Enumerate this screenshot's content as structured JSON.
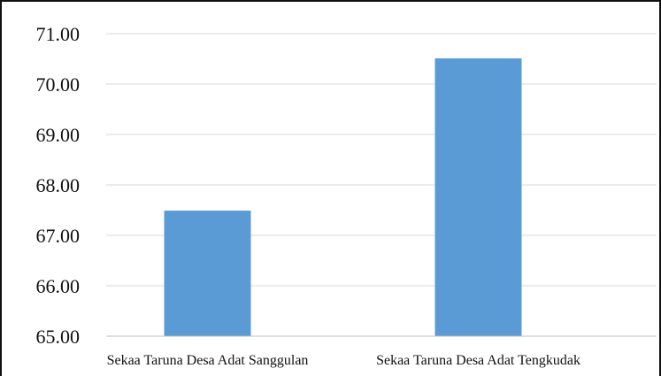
{
  "chart_data": {
    "type": "bar",
    "categories": [
      "Sekaa Taruna Desa Adat Sanggulan",
      "Sekaa Taruna Desa Adat Tengkudak"
    ],
    "values": [
      67.49,
      70.51
    ],
    "ylim": [
      65,
      71
    ],
    "yticks": [
      "65.00",
      "66.00",
      "67.00",
      "68.00",
      "69.00",
      "70.00",
      "71.00"
    ],
    "title": "",
    "xlabel": "",
    "ylabel": "",
    "grid": true,
    "legend": "none",
    "bar_color": "#5B9BD5",
    "grid_color": "#D9D9D9",
    "axis_color": "#BFBFBF",
    "text_color": "#111111"
  }
}
